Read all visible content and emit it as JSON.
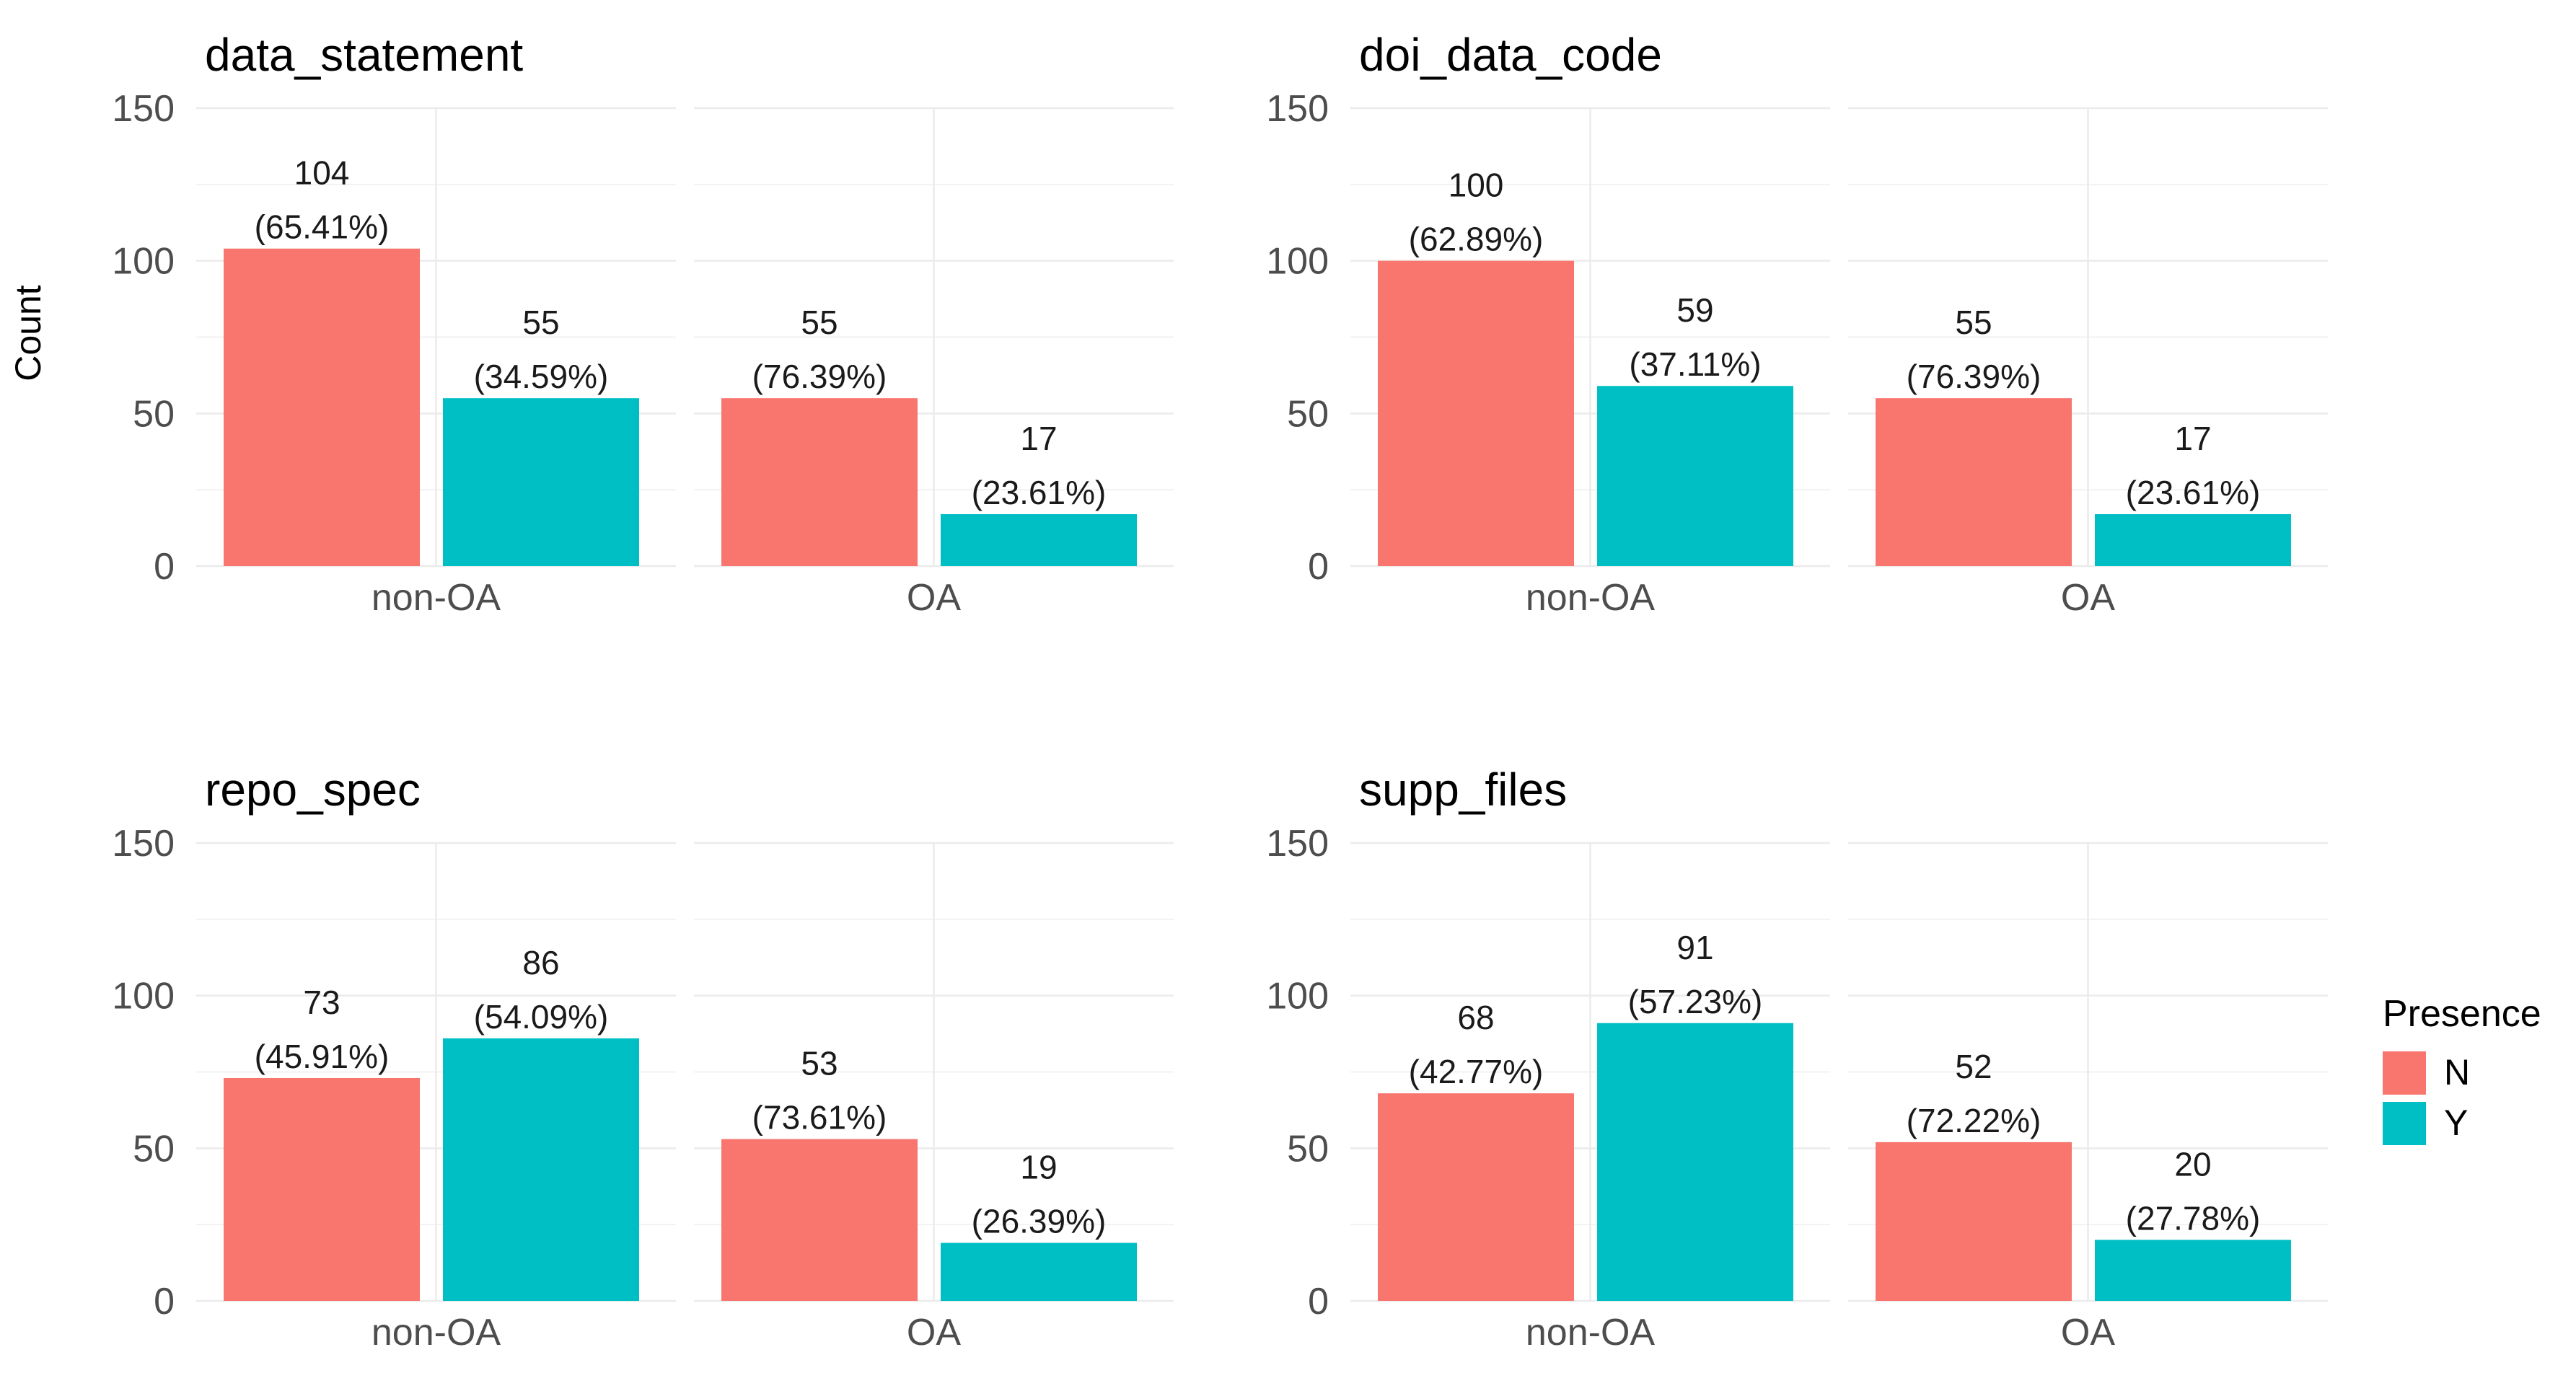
{
  "chart_data": {
    "type": "bar",
    "ylabel": "Count",
    "ylim": [
      0,
      150
    ],
    "yticks": [
      "0",
      "50",
      "100",
      "150"
    ],
    "grid": true,
    "legend": {
      "title": "Presence",
      "position": "right",
      "entries": [
        {
          "label": "N",
          "color": "#F8766D"
        },
        {
          "label": "Y",
          "color": "#00BFC4"
        }
      ]
    },
    "facets": [
      "non-OA",
      "OA"
    ],
    "panels": [
      {
        "title": "data_statement",
        "groups": [
          {
            "facet": "non-OA",
            "bars": [
              {
                "series": "N",
                "value": 104,
                "count_label": "104",
                "pct_label": "(65.41%)"
              },
              {
                "series": "Y",
                "value": 55,
                "count_label": "55",
                "pct_label": "(34.59%)"
              }
            ]
          },
          {
            "facet": "OA",
            "bars": [
              {
                "series": "N",
                "value": 55,
                "count_label": "55",
                "pct_label": "(76.39%)"
              },
              {
                "series": "Y",
                "value": 17,
                "count_label": "17",
                "pct_label": "(23.61%)"
              }
            ]
          }
        ]
      },
      {
        "title": "doi_data_code",
        "groups": [
          {
            "facet": "non-OA",
            "bars": [
              {
                "series": "N",
                "value": 100,
                "count_label": "100",
                "pct_label": "(62.89%)"
              },
              {
                "series": "Y",
                "value": 59,
                "count_label": "59",
                "pct_label": "(37.11%)"
              }
            ]
          },
          {
            "facet": "OA",
            "bars": [
              {
                "series": "N",
                "value": 55,
                "count_label": "55",
                "pct_label": "(76.39%)"
              },
              {
                "series": "Y",
                "value": 17,
                "count_label": "17",
                "pct_label": "(23.61%)"
              }
            ]
          }
        ]
      },
      {
        "title": "repo_spec",
        "groups": [
          {
            "facet": "non-OA",
            "bars": [
              {
                "series": "N",
                "value": 73,
                "count_label": "73",
                "pct_label": "(45.91%)"
              },
              {
                "series": "Y",
                "value": 86,
                "count_label": "86",
                "pct_label": "(54.09%)"
              }
            ]
          },
          {
            "facet": "OA",
            "bars": [
              {
                "series": "N",
                "value": 53,
                "count_label": "53",
                "pct_label": "(73.61%)"
              },
              {
                "series": "Y",
                "value": 19,
                "count_label": "19",
                "pct_label": "(26.39%)"
              }
            ]
          }
        ]
      },
      {
        "title": "supp_files",
        "groups": [
          {
            "facet": "non-OA",
            "bars": [
              {
                "series": "N",
                "value": 68,
                "count_label": "68",
                "pct_label": "(42.77%)"
              },
              {
                "series": "Y",
                "value": 91,
                "count_label": "91",
                "pct_label": "(57.23%)"
              }
            ]
          },
          {
            "facet": "OA",
            "bars": [
              {
                "series": "N",
                "value": 52,
                "count_label": "52",
                "pct_label": "(72.22%)"
              },
              {
                "series": "Y",
                "value": 20,
                "count_label": "20",
                "pct_label": "(27.78%)"
              }
            ]
          }
        ]
      }
    ]
  }
}
